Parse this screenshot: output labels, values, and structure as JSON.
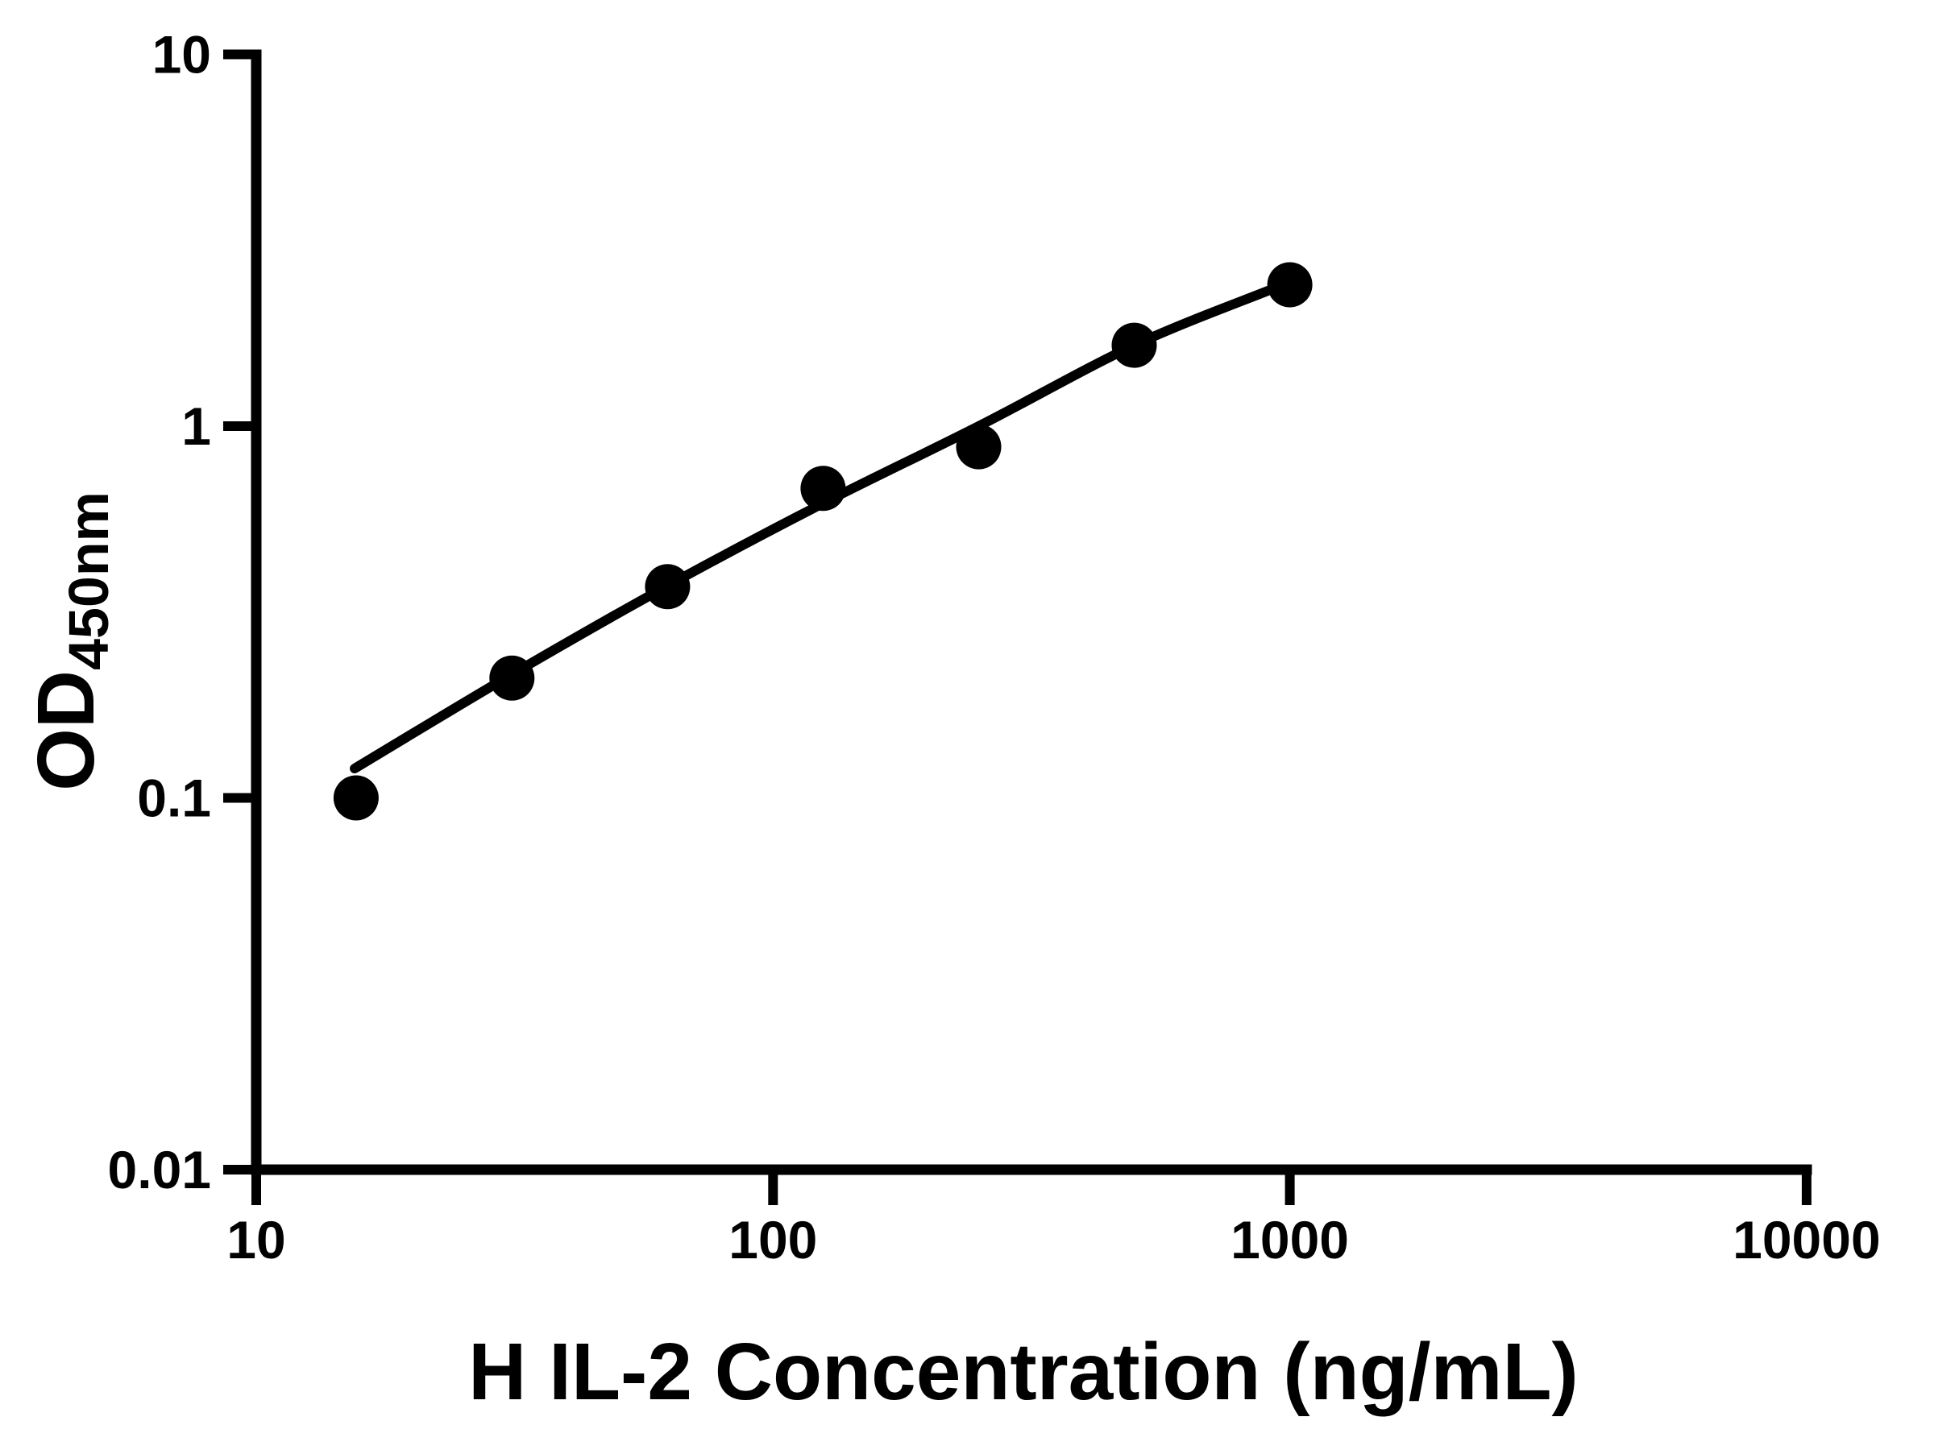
{
  "chart_data": {
    "type": "scatter",
    "title": "",
    "xlabel": "H IL-2 Concentration (ng/mL)",
    "ylabel_main": "OD",
    "ylabel_sub": "450nm",
    "x_scale": "log",
    "y_scale": "log",
    "xlim": [
      10,
      10000
    ],
    "ylim": [
      0.01,
      10
    ],
    "grid": false,
    "legend": "none",
    "marker_color": "#000000",
    "line_color": "#000000",
    "axis_color": "#000000",
    "x_ticks": [
      {
        "value": 10,
        "label": "10"
      },
      {
        "value": 100,
        "label": "100"
      },
      {
        "value": 1000,
        "label": "1000"
      },
      {
        "value": 10000,
        "label": "10000"
      }
    ],
    "y_ticks": [
      {
        "value": 10,
        "label": "10"
      },
      {
        "value": 1,
        "label": "1"
      },
      {
        "value": 0.1,
        "label": "0.1"
      },
      {
        "value": 0.01,
        "label": "0.01"
      }
    ],
    "series": [
      {
        "name": "standard-points",
        "marker": "filled-circle",
        "points": [
          {
            "x": 15.6,
            "y": 0.1
          },
          {
            "x": 31.25,
            "y": 0.21
          },
          {
            "x": 62.5,
            "y": 0.37
          },
          {
            "x": 125,
            "y": 0.68
          },
          {
            "x": 250,
            "y": 0.88
          },
          {
            "x": 500,
            "y": 1.65
          },
          {
            "x": 1000,
            "y": 2.4
          }
        ]
      }
    ],
    "fit_curve": {
      "name": "standard-curve-fit-line",
      "points": [
        {
          "x": 15.5,
          "y": 0.12
        },
        {
          "x": 31.25,
          "y": 0.215
        },
        {
          "x": 62.5,
          "y": 0.372
        },
        {
          "x": 125,
          "y": 0.62
        },
        {
          "x": 250,
          "y": 1.0
        },
        {
          "x": 500,
          "y": 1.65
        },
        {
          "x": 905,
          "y": 2.31
        }
      ]
    }
  }
}
